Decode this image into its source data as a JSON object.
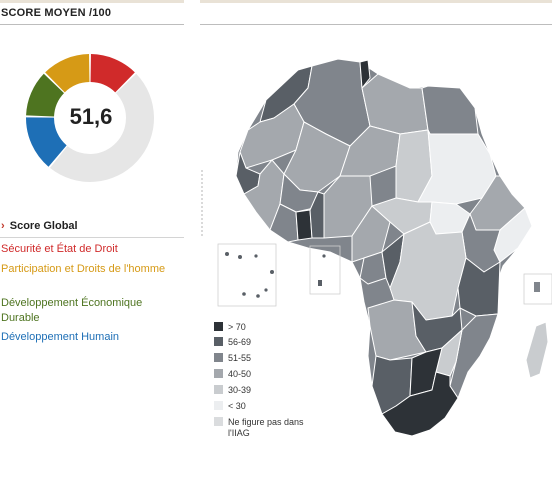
{
  "panel": {
    "title": "SCORE MOYEN /100"
  },
  "score": {
    "value": "51,6"
  },
  "global_label": "Score Global",
  "categories": [
    {
      "label": "Sécurité et État de Droit",
      "color": "#d02a2a"
    },
    {
      "label": "Participation et Droits de l'homme",
      "color": "#d69a16"
    },
    {
      "label": "Développement Économique Durable",
      "color": "#4e7420"
    },
    {
      "label": "Développement Humain",
      "color": "#1e6fb6"
    }
  ],
  "donut": {
    "segments": [
      {
        "name": "security",
        "color": "#d02a2a",
        "value": 12.6
      },
      {
        "name": "empty",
        "color": "#e6e6e6",
        "value": 48.4
      },
      {
        "name": "human",
        "color": "#1e6fb6",
        "value": 14.4
      },
      {
        "name": "economic",
        "color": "#4e7420",
        "value": 12.0
      },
      {
        "name": "participation",
        "color": "#d69a16",
        "value": 12.6
      }
    ]
  },
  "legend": {
    "items": [
      {
        "label": "> 70",
        "color": "#2d3237"
      },
      {
        "label": "56-69",
        "color": "#595f66"
      },
      {
        "label": "51-55",
        "color": "#80858c"
      },
      {
        "label": "40-50",
        "color": "#a4a8ad"
      },
      {
        "label": "30-39",
        "color": "#c9cccf"
      },
      {
        "label": "< 30",
        "color": "#eceef0"
      },
      {
        "label": "Ne figure pas dans l'IIAG",
        "color": "#dadcde"
      }
    ]
  },
  "map_colors": {
    "c1": "#2d3237",
    "c2": "#595f66",
    "c3": "#80858c",
    "c4": "#a4a8ad",
    "c5": "#c9cccf",
    "c6": "#eceef0",
    "c7": "#dadcde"
  }
}
